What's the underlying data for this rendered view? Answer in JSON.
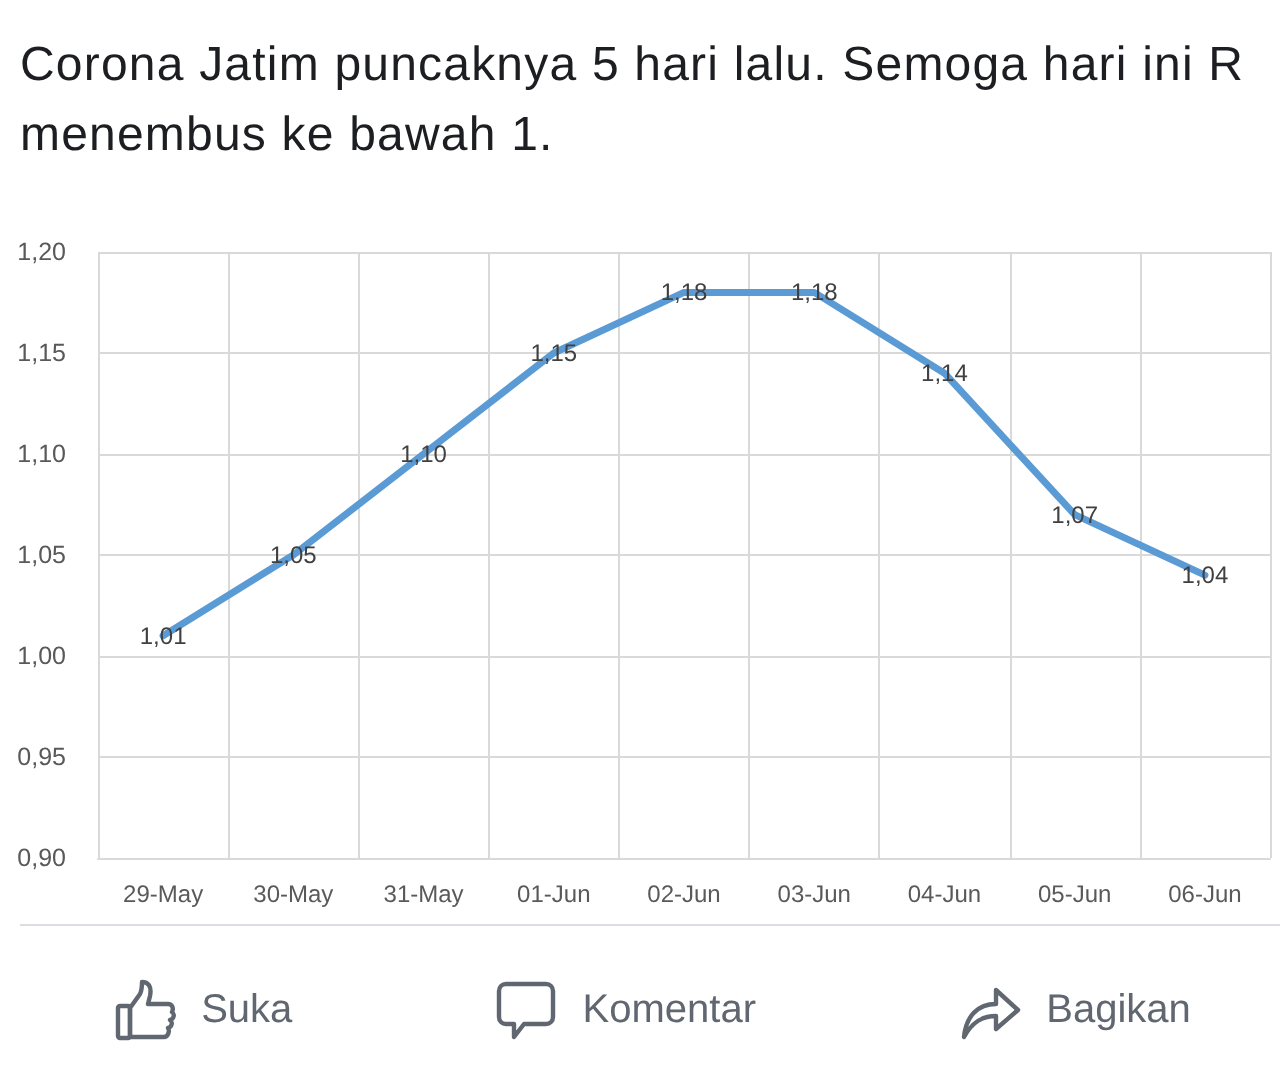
{
  "chart_data": {
    "type": "line",
    "title": "Corona Jatim puncaknya 5 hari lalu. Semoga hari ini R menembus ke bawah 1.",
    "categories": [
      "29-May",
      "30-May",
      "31-May",
      "01-Jun",
      "02-Jun",
      "03-Jun",
      "04-Jun",
      "05-Jun",
      "06-Jun"
    ],
    "values": [
      1.01,
      1.05,
      1.1,
      1.15,
      1.18,
      1.18,
      1.14,
      1.07,
      1.04
    ],
    "value_labels": [
      "1,01",
      "1,05",
      "1,10",
      "1,15",
      "1,18",
      "1,18",
      "1,14",
      "1,07",
      "1,04"
    ],
    "color": "#5b9bd5",
    "ylim": [
      0.9,
      1.2
    ],
    "yticks": [
      {
        "value": 0.9,
        "label": "0,90"
      },
      {
        "value": 0.95,
        "label": "0,95"
      },
      {
        "value": 1.0,
        "label": "1,00"
      },
      {
        "value": 1.05,
        "label": "1,05"
      },
      {
        "value": 1.1,
        "label": "1,10"
      },
      {
        "value": 1.15,
        "label": "1,15"
      },
      {
        "value": 1.2,
        "label": "1,20"
      }
    ],
    "grid": true,
    "marker": "none",
    "line_style": "solid",
    "annotations": [
      "Suka",
      "Komentar",
      "Bagikan"
    ]
  }
}
